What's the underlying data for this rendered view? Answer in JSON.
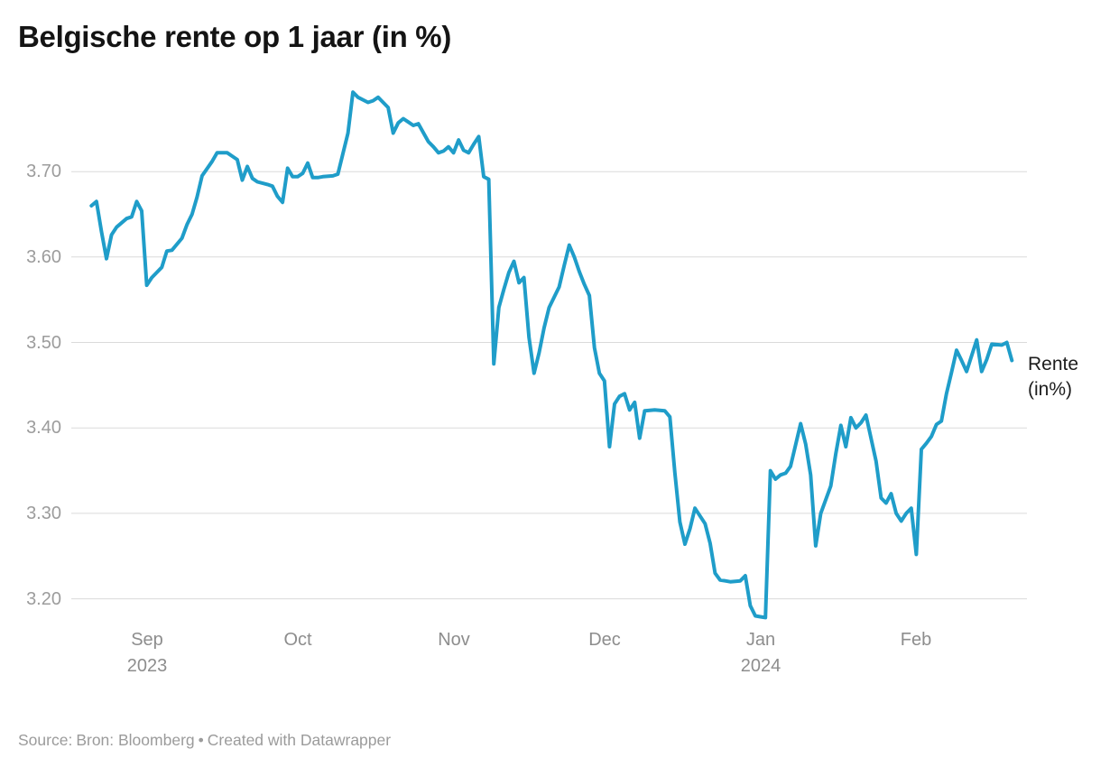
{
  "title": "Belgische rente op 1 jaar (in %)",
  "annotation": {
    "line1": "Rente",
    "line2": "(in%)"
  },
  "footer": {
    "source_label": "Source:",
    "source_name": "Bron: Bloomberg",
    "separator": "•",
    "credit": "Created with Datawrapper"
  },
  "colors": {
    "line": "#1f9dc9",
    "grid": "#dadada",
    "y_label_text": "#9c9c9c",
    "x_label_text": "#8d8d8d",
    "title_text": "#141414",
    "annotation_text": "#1c1c1c",
    "footer_text": "#9b9b9b"
  },
  "chart_data": {
    "type": "line",
    "title": "Belgische rente op 1 jaar (in %)",
    "xlabel": "",
    "ylabel": "",
    "grid": "horizontal",
    "ylim": [
      3.17,
      3.81
    ],
    "x_domain": [
      "2023-08-17",
      "2024-02-23"
    ],
    "y_ticks": [
      {
        "value": 3.7,
        "label": "3.70"
      },
      {
        "value": 3.6,
        "label": "3.60"
      },
      {
        "value": 3.5,
        "label": "3.50"
      },
      {
        "value": 3.4,
        "label": "3.40"
      },
      {
        "value": 3.3,
        "label": "3.30"
      },
      {
        "value": 3.2,
        "label": "3.20"
      }
    ],
    "x_ticks": [
      {
        "date": "2023-09-01",
        "label": "Sep",
        "sublabel": "2023"
      },
      {
        "date": "2023-10-01",
        "label": "Oct",
        "sublabel": ""
      },
      {
        "date": "2023-11-01",
        "label": "Nov",
        "sublabel": ""
      },
      {
        "date": "2023-12-01",
        "label": "Dec",
        "sublabel": ""
      },
      {
        "date": "2024-01-01",
        "label": "Jan",
        "sublabel": "2024"
      },
      {
        "date": "2024-02-01",
        "label": "Feb",
        "sublabel": ""
      }
    ],
    "legend_position": "right-of-line-end",
    "series": [
      {
        "name": "Rente (in%)",
        "points": [
          [
            "2023-08-21",
            3.66
          ],
          [
            "2023-08-22",
            3.665
          ],
          [
            "2023-08-23",
            3.63
          ],
          [
            "2023-08-24",
            3.598
          ],
          [
            "2023-08-25",
            3.626
          ],
          [
            "2023-08-26",
            3.635
          ],
          [
            "2023-08-28",
            3.645
          ],
          [
            "2023-08-29",
            3.647
          ],
          [
            "2023-08-30",
            3.665
          ],
          [
            "2023-08-31",
            3.654
          ],
          [
            "2023-09-01",
            3.567
          ],
          [
            "2023-09-02",
            3.576
          ],
          [
            "2023-09-03",
            3.582
          ],
          [
            "2023-09-04",
            3.588
          ],
          [
            "2023-09-05",
            3.607
          ],
          [
            "2023-09-06",
            3.608
          ],
          [
            "2023-09-08",
            3.622
          ],
          [
            "2023-09-09",
            3.638
          ],
          [
            "2023-09-10",
            3.65
          ],
          [
            "2023-09-11",
            3.67
          ],
          [
            "2023-09-12",
            3.695
          ],
          [
            "2023-09-14",
            3.712
          ],
          [
            "2023-09-15",
            3.722
          ],
          [
            "2023-09-17",
            3.722
          ],
          [
            "2023-09-18",
            3.718
          ],
          [
            "2023-09-19",
            3.714
          ],
          [
            "2023-09-20",
            3.69
          ],
          [
            "2023-09-21",
            3.706
          ],
          [
            "2023-09-22",
            3.692
          ],
          [
            "2023-09-23",
            3.688
          ],
          [
            "2023-09-25",
            3.685
          ],
          [
            "2023-09-26",
            3.683
          ],
          [
            "2023-09-27",
            3.671
          ],
          [
            "2023-09-28",
            3.664
          ],
          [
            "2023-09-29",
            3.704
          ],
          [
            "2023-09-30",
            3.694
          ],
          [
            "2023-10-01",
            3.694
          ],
          [
            "2023-10-02",
            3.698
          ],
          [
            "2023-10-03",
            3.71
          ],
          [
            "2023-10-04",
            3.693
          ],
          [
            "2023-10-05",
            3.693
          ],
          [
            "2023-10-06",
            3.694
          ],
          [
            "2023-10-08",
            3.695
          ],
          [
            "2023-10-09",
            3.697
          ],
          [
            "2023-10-11",
            3.745
          ],
          [
            "2023-10-12",
            3.793
          ],
          [
            "2023-10-13",
            3.787
          ],
          [
            "2023-10-15",
            3.781
          ],
          [
            "2023-10-16",
            3.783
          ],
          [
            "2023-10-17",
            3.787
          ],
          [
            "2023-10-19",
            3.775
          ],
          [
            "2023-10-20",
            3.745
          ],
          [
            "2023-10-21",
            3.757
          ],
          [
            "2023-10-22",
            3.762
          ],
          [
            "2023-10-23",
            3.758
          ],
          [
            "2023-10-24",
            3.754
          ],
          [
            "2023-10-25",
            3.756
          ],
          [
            "2023-10-27",
            3.735
          ],
          [
            "2023-10-28",
            3.729
          ],
          [
            "2023-10-29",
            3.722
          ],
          [
            "2023-10-30",
            3.724
          ],
          [
            "2023-10-31",
            3.729
          ],
          [
            "2023-11-01",
            3.722
          ],
          [
            "2023-11-02",
            3.737
          ],
          [
            "2023-11-03",
            3.725
          ],
          [
            "2023-11-04",
            3.722
          ],
          [
            "2023-11-05",
            3.732
          ],
          [
            "2023-11-06",
            3.741
          ],
          [
            "2023-11-07",
            3.694
          ],
          [
            "2023-11-08",
            3.691
          ],
          [
            "2023-11-09",
            3.475
          ],
          [
            "2023-11-10",
            3.541
          ],
          [
            "2023-11-11",
            3.562
          ],
          [
            "2023-11-12",
            3.582
          ],
          [
            "2023-11-13",
            3.595
          ],
          [
            "2023-11-14",
            3.57
          ],
          [
            "2023-11-15",
            3.576
          ],
          [
            "2023-11-16",
            3.506
          ],
          [
            "2023-11-17",
            3.464
          ],
          [
            "2023-11-18",
            3.488
          ],
          [
            "2023-11-19",
            3.517
          ],
          [
            "2023-11-20",
            3.541
          ],
          [
            "2023-11-22",
            3.565
          ],
          [
            "2023-11-23",
            3.59
          ],
          [
            "2023-11-24",
            3.614
          ],
          [
            "2023-11-25",
            3.6
          ],
          [
            "2023-11-26",
            3.583
          ],
          [
            "2023-11-27",
            3.568
          ],
          [
            "2023-11-28",
            3.555
          ],
          [
            "2023-11-29",
            3.494
          ],
          [
            "2023-11-30",
            3.464
          ],
          [
            "2023-12-01",
            3.455
          ],
          [
            "2023-12-02",
            3.378
          ],
          [
            "2023-12-03",
            3.428
          ],
          [
            "2023-12-04",
            3.437
          ],
          [
            "2023-12-05",
            3.44
          ],
          [
            "2023-12-06",
            3.421
          ],
          [
            "2023-12-07",
            3.43
          ],
          [
            "2023-12-08",
            3.388
          ],
          [
            "2023-12-09",
            3.42
          ],
          [
            "2023-12-11",
            3.421
          ],
          [
            "2023-12-13",
            3.42
          ],
          [
            "2023-12-14",
            3.413
          ],
          [
            "2023-12-15",
            3.348
          ],
          [
            "2023-12-16",
            3.29
          ],
          [
            "2023-12-17",
            3.264
          ],
          [
            "2023-12-18",
            3.282
          ],
          [
            "2023-12-19",
            3.306
          ],
          [
            "2023-12-21",
            3.288
          ],
          [
            "2023-12-22",
            3.265
          ],
          [
            "2023-12-23",
            3.23
          ],
          [
            "2023-12-24",
            3.222
          ],
          [
            "2023-12-25",
            3.221
          ],
          [
            "2023-12-26",
            3.22
          ],
          [
            "2023-12-28",
            3.221
          ],
          [
            "2023-12-29",
            3.227
          ],
          [
            "2023-12-30",
            3.192
          ],
          [
            "2023-12-31",
            3.18
          ],
          [
            "2024-01-01",
            3.179
          ],
          [
            "2024-01-02",
            3.178
          ],
          [
            "2024-01-03",
            3.35
          ],
          [
            "2024-01-04",
            3.34
          ],
          [
            "2024-01-05",
            3.345
          ],
          [
            "2024-01-06",
            3.347
          ],
          [
            "2024-01-07",
            3.355
          ],
          [
            "2024-01-09",
            3.405
          ],
          [
            "2024-01-10",
            3.381
          ],
          [
            "2024-01-11",
            3.345
          ],
          [
            "2024-01-12",
            3.262
          ],
          [
            "2024-01-13",
            3.3
          ],
          [
            "2024-01-15",
            3.332
          ],
          [
            "2024-01-16",
            3.37
          ],
          [
            "2024-01-17",
            3.403
          ],
          [
            "2024-01-18",
            3.378
          ],
          [
            "2024-01-19",
            3.412
          ],
          [
            "2024-01-20",
            3.4
          ],
          [
            "2024-01-21",
            3.406
          ],
          [
            "2024-01-22",
            3.415
          ],
          [
            "2024-01-24",
            3.361
          ],
          [
            "2024-01-25",
            3.318
          ],
          [
            "2024-01-26",
            3.312
          ],
          [
            "2024-01-27",
            3.323
          ],
          [
            "2024-01-28",
            3.3
          ],
          [
            "2024-01-29",
            3.291
          ],
          [
            "2024-01-30",
            3.3
          ],
          [
            "2024-01-31",
            3.306
          ],
          [
            "2024-02-01",
            3.252
          ],
          [
            "2024-02-02",
            3.375
          ],
          [
            "2024-02-03",
            3.382
          ],
          [
            "2024-02-04",
            3.39
          ],
          [
            "2024-02-05",
            3.404
          ],
          [
            "2024-02-06",
            3.408
          ],
          [
            "2024-02-07",
            3.44
          ],
          [
            "2024-02-08",
            3.465
          ],
          [
            "2024-02-09",
            3.491
          ],
          [
            "2024-02-10",
            3.479
          ],
          [
            "2024-02-11",
            3.466
          ],
          [
            "2024-02-13",
            3.503
          ],
          [
            "2024-02-14",
            3.466
          ],
          [
            "2024-02-15",
            3.48
          ],
          [
            "2024-02-16",
            3.498
          ],
          [
            "2024-02-18",
            3.497
          ],
          [
            "2024-02-19",
            3.5
          ],
          [
            "2024-02-20",
            3.479
          ]
        ]
      }
    ]
  }
}
